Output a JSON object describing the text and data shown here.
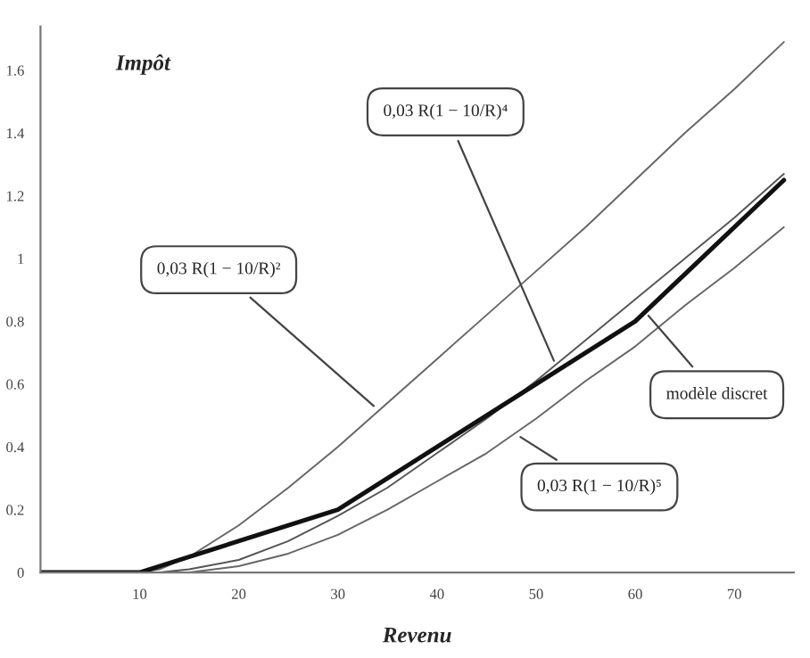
{
  "chart_data": {
    "type": "line",
    "xlabel": "Revenu",
    "ylabel": "Impôt",
    "x": [
      0,
      10,
      12,
      15,
      20,
      25,
      30,
      35,
      40,
      45,
      50,
      55,
      60,
      65,
      70,
      75
    ],
    "series": [
      {
        "color": "#666666",
        "values": [
          0,
          0,
          0.01,
          0.05,
          0.15,
          0.27,
          0.4,
          0.54,
          0.68,
          0.82,
          0.96,
          1.1,
          1.25,
          1.4,
          1.54,
          1.69
        ]
      },
      {
        "color": "#555555",
        "values": [
          0,
          0,
          0,
          0.01,
          0.04,
          0.1,
          0.18,
          0.27,
          0.38,
          0.49,
          0.61,
          0.74,
          0.87,
          1.0,
          1.13,
          1.27
        ]
      },
      {
        "color": "#666666",
        "values": [
          0,
          0,
          0,
          0,
          0.02,
          0.06,
          0.12,
          0.2,
          0.29,
          0.38,
          0.49,
          0.61,
          0.72,
          0.85,
          0.97,
          1.1
        ]
      },
      {
        "color": "#111111",
        "x": [
          0,
          10,
          30,
          60,
          75
        ],
        "values": [
          0,
          0,
          0.2,
          0.8,
          1.25
        ]
      }
    ],
    "xlim": [
      0,
      76
    ],
    "ylim": [
      0,
      1.74
    ],
    "xticks": [
      10,
      20,
      30,
      40,
      50,
      60,
      70
    ],
    "yticks": [
      0,
      0.2,
      0.4,
      0.6,
      0.8,
      1,
      1.2,
      1.4,
      1.6
    ],
    "grid": false,
    "legend": false,
    "marker": "none",
    "line_style": "solid",
    "annotations": [
      {
        "text": "0,03 R(1 − 10/R)²",
        "x": 34,
        "y": 0.52
      },
      {
        "text": "0,03 R(1 − 10/R)⁴",
        "x": 52,
        "y": 0.66
      },
      {
        "text": "modèle discret",
        "x": 61,
        "y": 0.83
      },
      {
        "text": "0,03 R(1 − 10/R)⁵",
        "x": 48,
        "y": 0.44
      }
    ]
  }
}
